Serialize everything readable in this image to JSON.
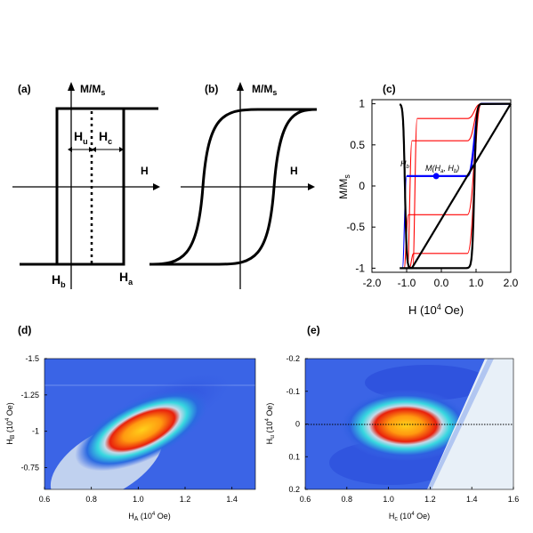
{
  "chart_data": [
    {
      "panel": "(a)",
      "type": "line",
      "ylabel": "M/M",
      "ylabel_sub": "s",
      "xlabel": "H",
      "annotations": {
        "hu": "H",
        "hu_sub": "u",
        "hc": "H",
        "hc_sub": "c",
        "hb": "H",
        "hb_sub": "b",
        "ha": "H",
        "ha_sub": "a"
      }
    },
    {
      "panel": "(b)",
      "type": "line",
      "ylabel": "M/M",
      "ylabel_sub": "s",
      "xlabel": "H"
    },
    {
      "panel": "(c)",
      "type": "line",
      "xlabel": "H (10",
      "xlabel_sup": "4",
      "xlabel_end": " Oe)",
      "ylabel": "M/M",
      "ylabel_sub": "s",
      "xlim": [
        -2.0,
        2.0
      ],
      "ylim": [
        -1.05,
        1.05
      ],
      "xticks": [
        "-2.0",
        "-1.0",
        "0.0",
        "1.0",
        "2.0"
      ],
      "yticks": [
        "1",
        "0.5",
        "0",
        "-0.5",
        "-1"
      ],
      "major_loop": {
        "Hc_minus": -1.05,
        "Hc_plus": 0.95,
        "color": "#000000"
      },
      "minor_loops": [
        {
          "level": 0.82,
          "Hb": -0.7,
          "color": "#ff0000"
        },
        {
          "level": 0.55,
          "Hb": -0.85,
          "color": "#ff0000"
        },
        {
          "level": 0.12,
          "Hb": -1.0,
          "color": "#0000ff"
        },
        {
          "level": -0.35,
          "Hb": -0.95,
          "color": "#ff0000"
        },
        {
          "level": -0.82,
          "Hb": -0.8,
          "color": "#ff0000"
        }
      ],
      "marker": {
        "x": -0.15,
        "y": 0.12,
        "label": "M(H",
        "label_sub1": "a",
        "label_mid": ", H",
        "label_sub2": "b",
        "label_end": ")"
      },
      "hb_label": "H",
      "hb_sub": "b"
    },
    {
      "panel": "(d)",
      "type": "heatmap",
      "xlabel": "H",
      "xlabel_sub": "A",
      "xlabel_end": " (10",
      "xlabel_sup": "4",
      "xlabel_tail": " Oe)",
      "ylabel": "H",
      "ylabel_sub": "B",
      "ylabel_end": " (10",
      "ylabel_sup": "4",
      "ylabel_tail": " Oe)",
      "xlim": [
        0.6,
        1.5
      ],
      "ylim": [
        -1.5,
        -0.6
      ],
      "xticks": [
        "0.6",
        "0.8",
        "1.0",
        "1.2",
        "1.4"
      ],
      "yticks": [
        "-1.5",
        "-1.25",
        "-1",
        "-0.75"
      ],
      "peak": {
        "x": 1.08,
        "y": -1.05
      }
    },
    {
      "panel": "(e)",
      "type": "heatmap",
      "xlabel": "H",
      "xlabel_sub": "c",
      "xlabel_end": " (10",
      "xlabel_sup": "4",
      "xlabel_tail": " Oe)",
      "ylabel": "H",
      "ylabel_sub": "u",
      "ylabel_end": " (10",
      "ylabel_sup": "4",
      "ylabel_tail": " Oe)",
      "xlim": [
        0.6,
        1.6
      ],
      "ylim": [
        -0.2,
        0.2
      ],
      "xticks": [
        "0.6",
        "0.8",
        "1.0",
        "1.2",
        "1.4",
        "1.6"
      ],
      "yticks": [
        "0.2",
        "0.1",
        "0",
        "-0.1",
        "-0.2"
      ],
      "peak": {
        "x": 1.07,
        "y": 0.0
      }
    }
  ],
  "colors": {
    "background_map": "#3b64e6",
    "cyan": "#38d8e0",
    "red": "#e8200c",
    "yellow": "#ffd01a"
  }
}
